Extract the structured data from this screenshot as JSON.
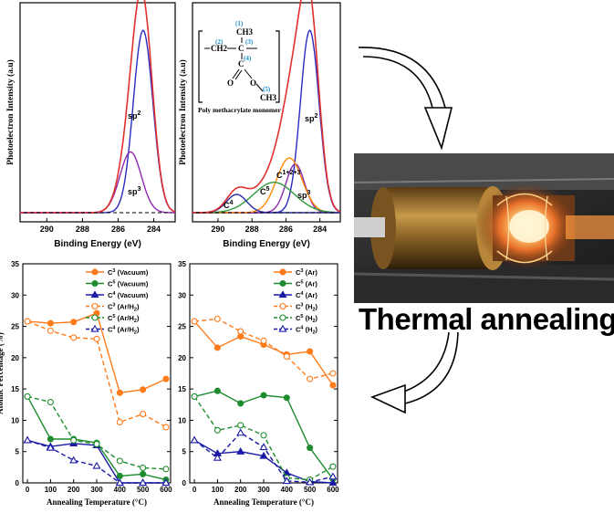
{
  "caption": "Thermal annealing",
  "colors": {
    "carbon_sp2": "#ff5500",
    "vacuum_ar": "#ff7a1a",
    "c5_series": "#1e8c2e",
    "c4_series": "#1a1aa6",
    "xps_envelope": "#e03030",
    "xps_sp2": "#2a2ac0",
    "xps_sp3": "#8a2ab0"
  },
  "molecule": {
    "caption": "Poly methacrylate monomer",
    "labels": {
      "n1": "(1)",
      "n2": "(2)",
      "n3": "(3)",
      "n4": "(4)",
      "n5": "(5)"
    },
    "groups": {
      "ch3_top": "CH3",
      "ch2": "CH2",
      "c": "C",
      "c4": "C",
      "o_double": "O",
      "o_single": "O",
      "ch3_bottom": "CH3"
    }
  },
  "chart_data": [
    {
      "type": "line",
      "panel": "xps-left",
      "xlabel": "Binding Energy (eV)",
      "ylabel": "Photoelectron Intensity (a.u)",
      "xticks": [
        "290",
        "288",
        "286",
        "284"
      ],
      "xlim": [
        291.5,
        282.8
      ],
      "peak_labels": {
        "sp2": "sp2",
        "sp3": "sp3"
      },
      "series": [
        {
          "name": "sp2",
          "peak_center": 284.6,
          "peak_height": 0.9,
          "peak_width": 0.55
        },
        {
          "name": "sp3",
          "peak_center": 285.3,
          "peak_height": 0.3,
          "peak_width": 0.6
        }
      ]
    },
    {
      "type": "line",
      "panel": "xps-right",
      "xlabel": "Binding Energy (eV)",
      "ylabel": "Photoelectron Intensity (a.u)",
      "xticks": [
        "290",
        "288",
        "286",
        "284"
      ],
      "xlim": [
        291.5,
        282.8
      ],
      "peak_labels": {
        "sp2": "sp2",
        "sp3": "sp3",
        "c123": "C1+2+3",
        "c4": "C4",
        "c5": "C5"
      },
      "series": [
        {
          "name": "sp2",
          "peak_center": 284.6,
          "peak_height": 0.9,
          "peak_width": 0.55
        },
        {
          "name": "sp3",
          "peak_center": 285.45,
          "peak_height": 0.24,
          "peak_width": 0.55
        },
        {
          "name": "C1+2+3",
          "peak_center": 285.8,
          "peak_height": 0.27,
          "peak_width": 0.75
        },
        {
          "name": "C5",
          "peak_center": 286.7,
          "peak_height": 0.15,
          "peak_width": 1.2
        },
        {
          "name": "C4",
          "peak_center": 288.9,
          "peak_height": 0.09,
          "peak_width": 0.6
        }
      ]
    },
    {
      "type": "line",
      "panel": "atomic-left",
      "xlabel": "Annealing Temperature (°C)",
      "ylabel": "Atomic Percentage (%)",
      "x": [
        0,
        100,
        200,
        300,
        400,
        500,
        600
      ],
      "xlim": [
        -20,
        620
      ],
      "ylim": [
        0,
        35
      ],
      "yticks": [
        0,
        5,
        10,
        15,
        20,
        25,
        30,
        35
      ],
      "xticks": [
        0,
        100,
        200,
        300,
        400,
        500,
        600
      ],
      "legend_position": "top-right",
      "series": [
        {
          "name": "C3 (Vacuum)",
          "label": "C",
          "sup": "3",
          "suffix": " (Vacuum)",
          "color": "#ff7a1a",
          "dashed": false,
          "marker": "circle",
          "filled": true,
          "values": [
            25.8,
            25.5,
            25.7,
            27.1,
            14.4,
            14.9,
            16.6
          ]
        },
        {
          "name": "C5 (Vacuum)",
          "label": "C",
          "sup": "5",
          "suffix": " (Vacuum)",
          "color": "#1e8c2e",
          "dashed": false,
          "marker": "circle",
          "filled": true,
          "values": [
            13.8,
            7.0,
            7.0,
            6.4,
            1.1,
            1.4,
            0.5
          ]
        },
        {
          "name": "C4 (Vacuum)",
          "label": "C",
          "sup": "4",
          "suffix": " (Vacuum)",
          "color": "#1a1aa6",
          "dashed": false,
          "marker": "triangle",
          "filled": true,
          "values": [
            6.8,
            5.8,
            6.3,
            6.0,
            0.0,
            0.0,
            0.0
          ]
        },
        {
          "name": "C3 (Ar/H2)",
          "label": "C",
          "sup": "3",
          "suffix": " (Ar/H",
          "sub": "2",
          "color": "#ff7a1a",
          "dashed": true,
          "marker": "circle",
          "filled": false,
          "values": [
            25.8,
            24.3,
            23.2,
            23.0,
            9.7,
            11.0,
            8.9
          ]
        },
        {
          "name": "C5 (Ar/H2)",
          "label": "C",
          "sup": "5",
          "suffix": " (Ar/H",
          "sub": "2",
          "color": "#1e8c2e",
          "dashed": true,
          "marker": "circle",
          "filled": false,
          "values": [
            13.8,
            12.9,
            6.8,
            6.2,
            3.5,
            2.4,
            2.2
          ]
        },
        {
          "name": "C4 (Ar/H2)",
          "label": "C",
          "sup": "4",
          "suffix": " (Ar/H",
          "sub": "2",
          "color": "#1a1aa6",
          "dashed": true,
          "marker": "triangle",
          "filled": false,
          "values": [
            6.8,
            5.6,
            3.6,
            2.7,
            0.0,
            0.0,
            0.0
          ]
        }
      ]
    },
    {
      "type": "line",
      "panel": "atomic-right",
      "xlabel": "Annealing Temperature (°C)",
      "ylabel": "",
      "x": [
        0,
        100,
        200,
        300,
        400,
        500,
        600
      ],
      "xlim": [
        -20,
        620
      ],
      "ylim": [
        0,
        35
      ],
      "yticks": [
        0,
        5,
        10,
        15,
        20,
        25,
        30,
        35
      ],
      "xticks": [
        0,
        100,
        200,
        300,
        400,
        500,
        600
      ],
      "legend_position": "top-right",
      "series": [
        {
          "name": "C3 (Ar)",
          "label": "C",
          "sup": "3",
          "suffix": " (Ar)",
          "color": "#ff7a1a",
          "dashed": false,
          "marker": "circle",
          "filled": true,
          "values": [
            25.8,
            21.6,
            23.4,
            22.1,
            20.5,
            21.0,
            15.6
          ]
        },
        {
          "name": "C5 (Ar)",
          "label": "C",
          "sup": "5",
          "suffix": " (Ar)",
          "color": "#1e8c2e",
          "dashed": false,
          "marker": "circle",
          "filled": true,
          "values": [
            13.8,
            14.7,
            12.7,
            14.0,
            13.6,
            5.6,
            0.6
          ]
        },
        {
          "name": "C4 (Ar)",
          "label": "C",
          "sup": "4",
          "suffix": " (Ar)",
          "color": "#1a1aa6",
          "dashed": false,
          "marker": "triangle",
          "filled": true,
          "values": [
            6.8,
            4.7,
            5.0,
            4.3,
            1.6,
            0.2,
            0.0
          ]
        },
        {
          "name": "C3 (H2)",
          "label": "C",
          "sup": "3",
          "suffix": " (H",
          "sub": "2",
          "close": ")",
          "color": "#ff7a1a",
          "dashed": true,
          "marker": "circle",
          "filled": false,
          "values": [
            25.8,
            26.2,
            24.2,
            22.7,
            20.2,
            16.6,
            17.5
          ]
        },
        {
          "name": "C5 (H2)",
          "label": "C",
          "sup": "5",
          "suffix": " (H",
          "sub": "2",
          "close": ")",
          "color": "#1e8c2e",
          "dashed": true,
          "marker": "circle",
          "filled": false,
          "values": [
            13.8,
            8.4,
            9.2,
            7.6,
            0.8,
            0.5,
            2.6
          ]
        },
        {
          "name": "C4 (H2)",
          "label": "C",
          "sup": "4",
          "suffix": " (H",
          "sub": "2",
          "close": ")",
          "color": "#1a1aa6",
          "dashed": true,
          "marker": "triangle",
          "filled": false,
          "values": [
            6.8,
            4.0,
            8.0,
            5.7,
            0.3,
            0.1,
            1.0
          ]
        }
      ]
    }
  ]
}
